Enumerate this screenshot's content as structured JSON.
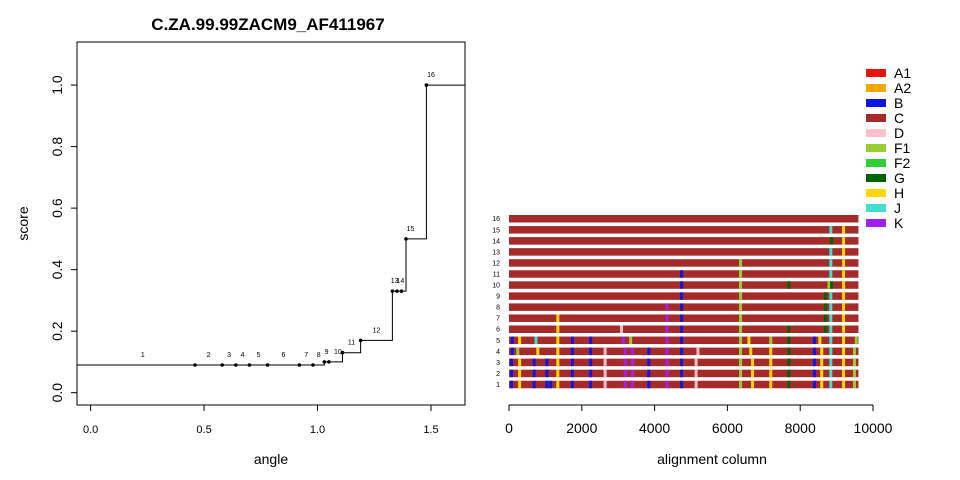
{
  "title": "C.ZA.99.99ZACM9_AF411967",
  "chart_data": [
    {
      "type": "line",
      "subtype": "step",
      "title": "C.ZA.99.99ZACM9_AF411967",
      "xlabel": "angle",
      "ylabel": "score",
      "xlim": [
        -0.06,
        1.65
      ],
      "ylim": [
        -0.04,
        1.14
      ],
      "xticks": [
        "0.0",
        "0.5",
        "1.0",
        "1.5"
      ],
      "xtick_values": [
        0.0,
        0.5,
        1.0,
        1.5
      ],
      "yticks": [
        "0.0",
        "0.2",
        "0.4",
        "0.6",
        "0.8",
        "1.0"
      ],
      "ytick_values": [
        0.0,
        0.2,
        0.4,
        0.6,
        0.8,
        1.0
      ],
      "points": [
        {
          "label": "1",
          "x": 0.46,
          "y": 0.09
        },
        {
          "label": "2",
          "x": 0.58,
          "y": 0.09
        },
        {
          "label": "3",
          "x": 0.64,
          "y": 0.09
        },
        {
          "label": "4",
          "x": 0.7,
          "y": 0.09
        },
        {
          "label": "5",
          "x": 0.78,
          "y": 0.09
        },
        {
          "label": "6",
          "x": 0.92,
          "y": 0.09
        },
        {
          "label": "7",
          "x": 0.98,
          "y": 0.09
        },
        {
          "label": "8",
          "x": 1.03,
          "y": 0.1
        },
        {
          "label": "9",
          "x": 1.05,
          "y": 0.1
        },
        {
          "label": "10",
          "x": 1.11,
          "y": 0.13
        },
        {
          "label": "11",
          "x": 1.19,
          "y": 0.17
        },
        {
          "label": "12",
          "x": 1.33,
          "y": 0.33
        },
        {
          "label": "13",
          "x": 1.35,
          "y": 0.33
        },
        {
          "label": "14",
          "x": 1.37,
          "y": 0.33
        },
        {
          "label": "15",
          "x": 1.39,
          "y": 0.5
        },
        {
          "label": "16",
          "x": 1.48,
          "y": 1.0
        }
      ],
      "label_positions": [
        {
          "label": "1",
          "x": 0.23,
          "y": 0.09
        },
        {
          "label": "2",
          "x": 0.52,
          "y": 0.09
        },
        {
          "label": "3",
          "x": 0.61,
          "y": 0.09
        },
        {
          "label": "4",
          "x": 0.67,
          "y": 0.09
        },
        {
          "label": "5",
          "x": 0.74,
          "y": 0.09
        },
        {
          "label": "6",
          "x": 0.85,
          "y": 0.09
        },
        {
          "label": "7",
          "x": 0.95,
          "y": 0.09
        },
        {
          "label": "8",
          "x": 1.005,
          "y": 0.09
        },
        {
          "label": "9",
          "x": 1.04,
          "y": 0.1
        },
        {
          "label": "10",
          "x": 1.09,
          "y": 0.1
        },
        {
          "label": "11",
          "x": 1.15,
          "y": 0.13
        },
        {
          "label": "12",
          "x": 1.26,
          "y": 0.17
        },
        {
          "label": "13",
          "x": 1.34,
          "y": 0.33
        },
        {
          "label": "14",
          "x": 1.365,
          "y": 0.33
        },
        {
          "label": "15",
          "x": 1.41,
          "y": 0.5
        },
        {
          "label": "16",
          "x": 1.5,
          "y": 1.0
        }
      ],
      "step_end_x": 1.65
    },
    {
      "type": "heatmap",
      "subtype": "alignment-bars",
      "xlabel": "alignment column",
      "ylabel": "",
      "xlim": [
        0,
        10000
      ],
      "xticks": [
        "0",
        "2000",
        "4000",
        "6000",
        "8000",
        "10000"
      ],
      "xtick_values": [
        0,
        2000,
        4000,
        6000,
        8000,
        10000
      ],
      "row_labels": [
        "16",
        "15",
        "14",
        "13",
        "12",
        "11",
        "10",
        "9",
        "8",
        "7",
        "6",
        "5",
        "4",
        "3",
        "2",
        "1"
      ],
      "row_length": 9600,
      "base_subtype": "C",
      "legend": [
        {
          "label": "A1",
          "color": "#e8150f"
        },
        {
          "label": "A2",
          "color": "#f7a600"
        },
        {
          "label": "B",
          "color": "#0c17e6"
        },
        {
          "label": "C",
          "color": "#a52a2a"
        },
        {
          "label": "D",
          "color": "#ffc0cb"
        },
        {
          "label": "F1",
          "color": "#9acd32"
        },
        {
          "label": "F2",
          "color": "#32cd32"
        },
        {
          "label": "G",
          "color": "#006400"
        },
        {
          "label": "H",
          "color": "#ffd700"
        },
        {
          "label": "J",
          "color": "#40e0d0"
        },
        {
          "label": "K",
          "color": "#a020f0"
        }
      ],
      "rows": [
        {
          "label": "16",
          "segments": []
        },
        {
          "label": "15",
          "segments": [
            {
              "x": 8800,
              "s": "J"
            },
            {
              "x": 9150,
              "s": "H"
            }
          ]
        },
        {
          "label": "14",
          "segments": [
            {
              "x": 8820,
              "s": "G"
            },
            {
              "x": 9150,
              "s": "H"
            }
          ]
        },
        {
          "label": "13",
          "segments": [
            {
              "x": 8800,
              "s": "J"
            },
            {
              "x": 9150,
              "s": "H"
            }
          ]
        },
        {
          "label": "12",
          "segments": [
            {
              "x": 6320,
              "s": "F1"
            },
            {
              "x": 8800,
              "s": "J"
            },
            {
              "x": 9150,
              "s": "H"
            }
          ]
        },
        {
          "label": "11",
          "segments": [
            {
              "x": 4700,
              "s": "B"
            },
            {
              "x": 6320,
              "s": "F1"
            },
            {
              "x": 8800,
              "s": "J"
            },
            {
              "x": 9150,
              "s": "H"
            }
          ]
        },
        {
          "label": "10",
          "segments": [
            {
              "x": 4700,
              "s": "B"
            },
            {
              "x": 6320,
              "s": "F1"
            },
            {
              "x": 7650,
              "s": "G"
            },
            {
              "x": 8750,
              "s": "F1"
            },
            {
              "x": 8820,
              "s": "G"
            },
            {
              "x": 9150,
              "s": "H"
            }
          ]
        },
        {
          "label": "9",
          "segments": [
            {
              "x": 4700,
              "s": "B"
            },
            {
              "x": 6320,
              "s": "F1"
            },
            {
              "x": 8650,
              "s": "G"
            },
            {
              "x": 8800,
              "s": "J"
            },
            {
              "x": 9150,
              "s": "H"
            }
          ]
        },
        {
          "label": "8",
          "segments": [
            {
              "x": 4300,
              "s": "K"
            },
            {
              "x": 4700,
              "s": "B"
            },
            {
              "x": 6320,
              "s": "F1"
            },
            {
              "x": 8650,
              "s": "G"
            },
            {
              "x": 8800,
              "s": "J"
            },
            {
              "x": 9150,
              "s": "H"
            }
          ]
        },
        {
          "label": "7",
          "segments": [
            {
              "x": 1300,
              "s": "H"
            },
            {
              "x": 4300,
              "s": "K"
            },
            {
              "x": 4700,
              "s": "B"
            },
            {
              "x": 6320,
              "s": "F1"
            },
            {
              "x": 8650,
              "s": "G"
            },
            {
              "x": 8800,
              "s": "J"
            },
            {
              "x": 9150,
              "s": "H"
            }
          ]
        },
        {
          "label": "6",
          "segments": [
            {
              "x": 1300,
              "s": "H"
            },
            {
              "x": 3050,
              "s": "D"
            },
            {
              "x": 4300,
              "s": "K"
            },
            {
              "x": 4700,
              "s": "B"
            },
            {
              "x": 6320,
              "s": "F1"
            },
            {
              "x": 7650,
              "s": "G"
            },
            {
              "x": 8650,
              "s": "G"
            },
            {
              "x": 8800,
              "s": "J"
            },
            {
              "x": 9150,
              "s": "H"
            }
          ]
        },
        {
          "label": "5",
          "segments": [
            {
              "x": 50,
              "s": "B"
            },
            {
              "x": 250,
              "s": "H"
            },
            {
              "x": 700,
              "s": "J"
            },
            {
              "x": 1300,
              "s": "H"
            },
            {
              "x": 1700,
              "s": "B"
            },
            {
              "x": 2200,
              "s": "B"
            },
            {
              "x": 3100,
              "s": "K"
            },
            {
              "x": 3300,
              "s": "F1"
            },
            {
              "x": 4300,
              "s": "K"
            },
            {
              "x": 4700,
              "s": "B"
            },
            {
              "x": 6320,
              "s": "F1"
            },
            {
              "x": 6550,
              "s": "H"
            },
            {
              "x": 7150,
              "s": "F1"
            },
            {
              "x": 7650,
              "s": "G"
            },
            {
              "x": 8350,
              "s": "B"
            },
            {
              "x": 8500,
              "s": "H"
            },
            {
              "x": 8800,
              "s": "J"
            },
            {
              "x": 9150,
              "s": "H"
            },
            {
              "x": 9500,
              "s": "F1"
            }
          ]
        },
        {
          "label": "4",
          "segments": [
            {
              "x": 50,
              "s": "B"
            },
            {
              "x": 200,
              "s": "F1"
            },
            {
              "x": 750,
              "s": "H"
            },
            {
              "x": 1300,
              "s": "H"
            },
            {
              "x": 1700,
              "s": "B"
            },
            {
              "x": 2200,
              "s": "B"
            },
            {
              "x": 2600,
              "s": "D"
            },
            {
              "x": 3150,
              "s": "K"
            },
            {
              "x": 3350,
              "s": "K"
            },
            {
              "x": 3800,
              "s": "B"
            },
            {
              "x": 4300,
              "s": "K"
            },
            {
              "x": 4700,
              "s": "B"
            },
            {
              "x": 5150,
              "s": "D"
            },
            {
              "x": 6320,
              "s": "F1"
            },
            {
              "x": 6600,
              "s": "H"
            },
            {
              "x": 7150,
              "s": "H"
            },
            {
              "x": 7650,
              "s": "G"
            },
            {
              "x": 8350,
              "s": "B"
            },
            {
              "x": 8550,
              "s": "H"
            },
            {
              "x": 8800,
              "s": "J"
            },
            {
              "x": 9150,
              "s": "H"
            },
            {
              "x": 9450,
              "s": "F1"
            }
          ]
        },
        {
          "label": "3",
          "segments": [
            {
              "x": 30,
              "s": "B"
            },
            {
              "x": 250,
              "s": "H"
            },
            {
              "x": 650,
              "s": "B"
            },
            {
              "x": 1000,
              "s": "B"
            },
            {
              "x": 1300,
              "s": "H"
            },
            {
              "x": 1700,
              "s": "B"
            },
            {
              "x": 2200,
              "s": "B"
            },
            {
              "x": 2600,
              "s": "D"
            },
            {
              "x": 3150,
              "s": "K"
            },
            {
              "x": 3350,
              "s": "K"
            },
            {
              "x": 3800,
              "s": "B"
            },
            {
              "x": 4300,
              "s": "K"
            },
            {
              "x": 4700,
              "s": "B"
            },
            {
              "x": 5100,
              "s": "D"
            },
            {
              "x": 6320,
              "s": "F1"
            },
            {
              "x": 6650,
              "s": "H"
            },
            {
              "x": 7150,
              "s": "H"
            },
            {
              "x": 7650,
              "s": "G"
            },
            {
              "x": 8350,
              "s": "B"
            },
            {
              "x": 8550,
              "s": "H"
            },
            {
              "x": 8800,
              "s": "J"
            },
            {
              "x": 9150,
              "s": "H"
            },
            {
              "x": 9450,
              "s": "F1"
            }
          ]
        },
        {
          "label": "2",
          "segments": [
            {
              "x": 30,
              "s": "B"
            },
            {
              "x": 250,
              "s": "H"
            },
            {
              "x": 650,
              "s": "B"
            },
            {
              "x": 1000,
              "s": "B"
            },
            {
              "x": 1300,
              "s": "H"
            },
            {
              "x": 1700,
              "s": "B"
            },
            {
              "x": 2200,
              "s": "B"
            },
            {
              "x": 2600,
              "s": "D"
            },
            {
              "x": 3150,
              "s": "K"
            },
            {
              "x": 3350,
              "s": "K"
            },
            {
              "x": 3800,
              "s": "B"
            },
            {
              "x": 4300,
              "s": "K"
            },
            {
              "x": 4700,
              "s": "B"
            },
            {
              "x": 5100,
              "s": "D"
            },
            {
              "x": 6320,
              "s": "F1"
            },
            {
              "x": 6650,
              "s": "H"
            },
            {
              "x": 7150,
              "s": "H"
            },
            {
              "x": 7650,
              "s": "G"
            },
            {
              "x": 8350,
              "s": "B"
            },
            {
              "x": 8550,
              "s": "H"
            },
            {
              "x": 8800,
              "s": "J"
            },
            {
              "x": 9150,
              "s": "H"
            },
            {
              "x": 9450,
              "s": "F1"
            }
          ]
        },
        {
          "label": "1",
          "segments": [
            {
              "x": 30,
              "s": "B"
            },
            {
              "x": 250,
              "s": "H"
            },
            {
              "x": 650,
              "s": "B"
            },
            {
              "x": 1000,
              "s": "B"
            },
            {
              "x": 1100,
              "s": "B"
            },
            {
              "x": 1300,
              "s": "H"
            },
            {
              "x": 1700,
              "s": "B"
            },
            {
              "x": 2200,
              "s": "B"
            },
            {
              "x": 2600,
              "s": "D"
            },
            {
              "x": 3150,
              "s": "K"
            },
            {
              "x": 3350,
              "s": "K"
            },
            {
              "x": 3800,
              "s": "B"
            },
            {
              "x": 4300,
              "s": "K"
            },
            {
              "x": 4700,
              "s": "B"
            },
            {
              "x": 5100,
              "s": "D"
            },
            {
              "x": 6320,
              "s": "F1"
            },
            {
              "x": 6650,
              "s": "H"
            },
            {
              "x": 7150,
              "s": "H"
            },
            {
              "x": 7650,
              "s": "G"
            },
            {
              "x": 8350,
              "s": "B"
            },
            {
              "x": 8550,
              "s": "H"
            },
            {
              "x": 8800,
              "s": "J"
            },
            {
              "x": 9150,
              "s": "H"
            },
            {
              "x": 9450,
              "s": "F1"
            }
          ]
        }
      ]
    }
  ]
}
